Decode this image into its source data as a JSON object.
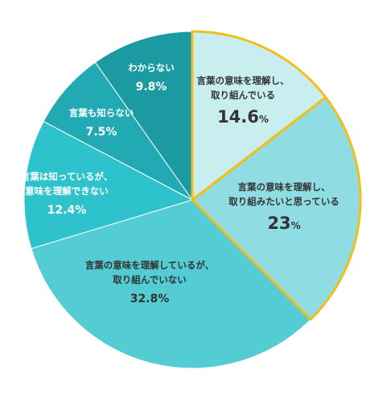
{
  "chart_data": {
    "type": "pie",
    "title": "",
    "start": "top",
    "direction": "clockwise",
    "slices": [
      {
        "label_lines": [
          "言葉の意味を理解し、",
          "取り組んでいる"
        ],
        "value": 14.6,
        "value_text": "14.6",
        "unit": "%",
        "color": "#c9eef0",
        "highlight": true
      },
      {
        "label_lines": [
          "言葉の意味を理解し、",
          "取り組みたいと思っている"
        ],
        "value": 23,
        "value_text": "23",
        "unit": "%",
        "color": "#8fdde2",
        "highlight": true
      },
      {
        "label_lines": [
          "言葉の意味を理解しているが、",
          "取り組んでいない"
        ],
        "value": 32.8,
        "value_text": "32.8%",
        "unit": "",
        "color": "#53ccd3",
        "highlight": false
      },
      {
        "label_lines": [
          "言葉は知っているが、",
          "意味を理解できない"
        ],
        "value": 12.4,
        "value_text": "12.4%",
        "unit": "",
        "color": "#2ec3cc",
        "highlight": false
      },
      {
        "label_lines": [
          "言葉も知らない"
        ],
        "value": 7.5,
        "value_text": "7.5%",
        "unit": "",
        "color": "#22aab4",
        "highlight": false
      },
      {
        "label_lines": [
          "わからない"
        ],
        "value": 9.8,
        "value_text": "9.8%",
        "unit": "",
        "color": "#1b9aa2",
        "highlight": false
      }
    ],
    "highlight_stroke": "#f2bf1a",
    "slice_border": "#ffffff"
  }
}
